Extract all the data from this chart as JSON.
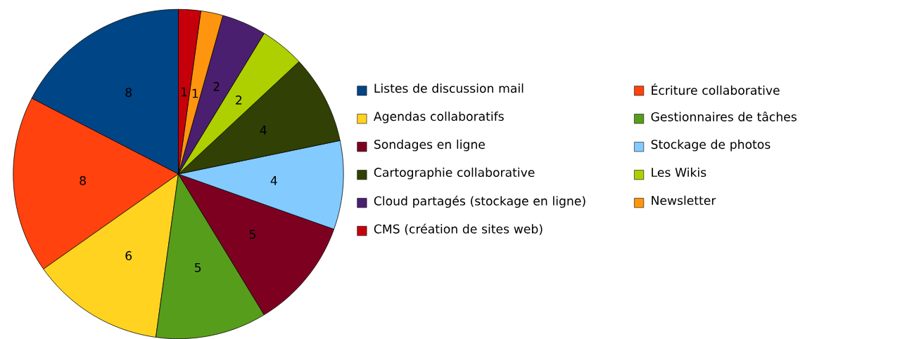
{
  "chart_data": {
    "type": "pie",
    "categories": [
      "Listes de discussion mail",
      "Écriture collaborative",
      "Agendas collaboratifs",
      "Gestionnaires de tâches",
      "Sondages en ligne",
      "Stockage de photos",
      "Cartographie collaborative",
      "Les Wikis",
      "Cloud partagés (stockage en ligne)",
      "Newsletter",
      "CMS (création de sites web)"
    ],
    "values": [
      8,
      8,
      6,
      5,
      5,
      4,
      4,
      2,
      2,
      1,
      1
    ],
    "colors": [
      "#004586",
      "#ff420e",
      "#ffd320",
      "#579d1c",
      "#7e0021",
      "#83caff",
      "#314004",
      "#aecf00",
      "#4b1f6f",
      "#ff950e",
      "#c5000b"
    ],
    "data_labels": true,
    "legend": "right"
  }
}
